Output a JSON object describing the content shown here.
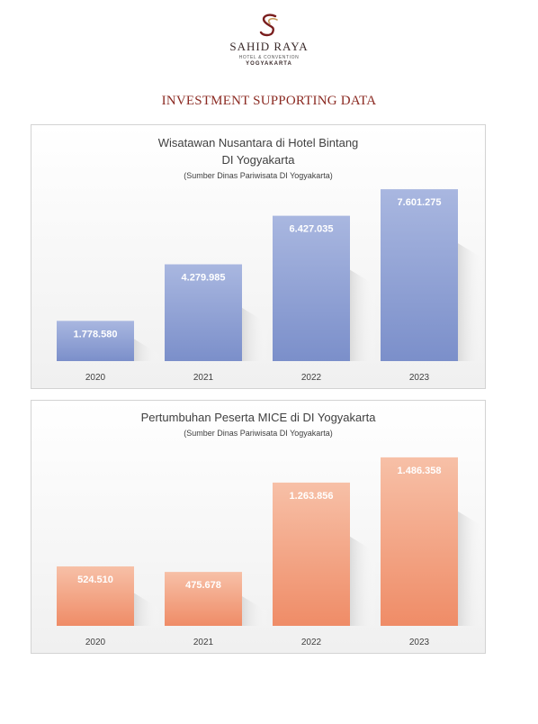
{
  "logo": {
    "name": "SAHID RAYA",
    "subtitle": "HOTEL & CONVENTION",
    "city": "YOGYAKARTA"
  },
  "heading": "INVESTMENT SUPPORTING DATA",
  "colors": {
    "heading": "#8b2a22",
    "chart1_top": "#a9b7e0",
    "chart1_bottom": "#7b8fca",
    "chart2_top": "#f7c0a7",
    "chart2_bottom": "#ef8c67"
  },
  "chart_data": [
    {
      "type": "bar",
      "title_lines": [
        "Wisatawan Nusantara di Hotel Bintang",
        "DI Yogyakarta"
      ],
      "subtitle": "(Sumber Dinas Pariwisata DI Yogyakarta)",
      "categories": [
        "2020",
        "2021",
        "2022",
        "2023"
      ],
      "values": [
        1778580,
        4279985,
        6427035,
        7601275
      ],
      "data_labels": [
        "1.778.580",
        "4.279.985",
        "6.427.035",
        "7.601.275"
      ],
      "ylim": [
        0,
        9000000
      ],
      "grid": false,
      "legend": "none"
    },
    {
      "type": "bar",
      "title_lines": [
        "Pertumbuhan Peserta MICE di DI Yogyakarta"
      ],
      "subtitle": "(Sumber Dinas Pariwisata DI Yogyakarta)",
      "categories": [
        "2020",
        "2021",
        "2022",
        "2023"
      ],
      "values": [
        524510,
        475678,
        1263856,
        1486358
      ],
      "data_labels": [
        "524.510",
        "475.678",
        "1.263.856",
        "1.486.358"
      ],
      "ylim": [
        0,
        1700000
      ],
      "grid": false,
      "legend": "none"
    }
  ]
}
